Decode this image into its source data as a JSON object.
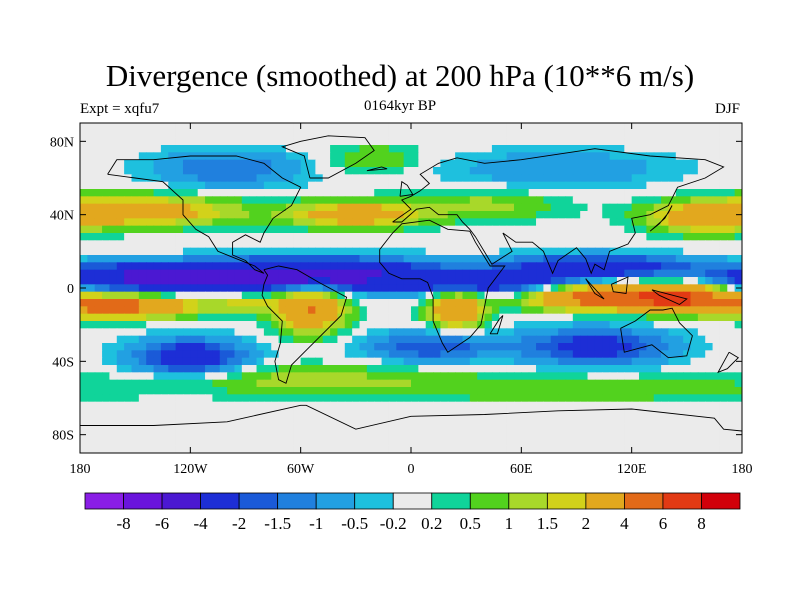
{
  "title": "Divergence (smoothed) at 200 hPa (10**6 m/s)",
  "left_label": "Expt = xqfu7",
  "center_label": "0164kyr BP",
  "right_label": "DJF",
  "map": {
    "lon_range": [
      -180,
      180
    ],
    "lat_range": [
      -90,
      90
    ],
    "lat_ticks": [
      {
        "value": 80,
        "label": "80N"
      },
      {
        "value": 40,
        "label": "40N"
      },
      {
        "value": 0,
        "label": "0"
      },
      {
        "value": -40,
        "label": "40S"
      },
      {
        "value": -80,
        "label": "80S"
      }
    ],
    "lon_ticks": [
      {
        "value": -180,
        "label": "180"
      },
      {
        "value": -120,
        "label": "120W"
      },
      {
        "value": -60,
        "label": "60W"
      },
      {
        "value": 0,
        "label": "0"
      },
      {
        "value": 60,
        "label": "60E"
      },
      {
        "value": 120,
        "label": "120E"
      },
      {
        "value": 180,
        "label": "180"
      }
    ]
  },
  "colorbar": {
    "colors": [
      "#8a1ee6",
      "#6a14dc",
      "#4b18d2",
      "#1d2ed6",
      "#1a5ad8",
      "#2080de",
      "#22a0e2",
      "#1ec0de",
      "#ebebeb",
      "#10d49a",
      "#52d21e",
      "#a8d82a",
      "#d2d21a",
      "#e2a81e",
      "#e26a18",
      "#e23a14",
      "#d2000a"
    ],
    "labels": [
      "-8",
      "-6",
      "-4",
      "-2",
      "-1.5",
      "-1",
      "-0.5",
      "-0.2",
      "0.2",
      "0.5",
      "1",
      "1.5",
      "2",
      "4",
      "6",
      "8"
    ]
  },
  "chart_data": {
    "type": "heatmap",
    "title": "Divergence (smoothed) at 200 hPa (10**6 m/s)",
    "levels": [
      -8,
      -6,
      -4,
      -2,
      -1.5,
      -1,
      -0.5,
      -0.2,
      0.2,
      0.5,
      1,
      1.5,
      2,
      4,
      6,
      8
    ],
    "blobs": [
      {
        "lon": -130,
        "lat": 6,
        "rlon": 60,
        "rlat": 7,
        "v": -5
      },
      {
        "lon": -50,
        "lat": 8,
        "rlon": 60,
        "rlat": 8,
        "v": -4.5
      },
      {
        "lon": 40,
        "lat": 3,
        "rlon": 60,
        "rlat": 6,
        "v": -3
      },
      {
        "lon": 100,
        "lat": 12,
        "rlon": 50,
        "rlat": 6,
        "v": -3
      },
      {
        "lon": -160,
        "lat": -10,
        "rlon": 40,
        "rlat": 6,
        "v": 5
      },
      {
        "lon": 100,
        "lat": -5,
        "rlon": 35,
        "rlat": 7,
        "v": 5
      },
      {
        "lon": 145,
        "lat": -5,
        "rlon": 25,
        "rlat": 7,
        "v": 6
      },
      {
        "lon": -55,
        "lat": -12,
        "rlon": 18,
        "rlat": 12,
        "v": 4
      },
      {
        "lon": 25,
        "lat": -12,
        "rlon": 15,
        "rlat": 10,
        "v": 3.5
      },
      {
        "lon": -90,
        "lat": -8,
        "rlon": 20,
        "rlat": 5,
        "v": 1.5
      },
      {
        "lon": -150,
        "lat": 42,
        "rlon": 55,
        "rlat": 8,
        "v": 3
      },
      {
        "lon": -30,
        "lat": 40,
        "rlon": 35,
        "rlat": 7,
        "v": 3
      },
      {
        "lon": 40,
        "lat": 45,
        "rlon": 40,
        "rlat": 8,
        "v": 1.2
      },
      {
        "lon": 160,
        "lat": 38,
        "rlon": 30,
        "rlat": 8,
        "v": 2.5
      },
      {
        "lon": -120,
        "lat": -38,
        "rlon": 30,
        "rlat": 10,
        "v": -3
      },
      {
        "lon": 10,
        "lat": -32,
        "rlon": 35,
        "rlat": 8,
        "v": -2
      },
      {
        "lon": 100,
        "lat": -32,
        "rlon": 40,
        "rlat": 10,
        "v": -2.5
      },
      {
        "lon": -60,
        "lat": -50,
        "rlon": 80,
        "rlat": 8,
        "v": 1.2
      },
      {
        "lon": 90,
        "lat": -55,
        "rlon": 100,
        "rlat": 7,
        "v": 1
      },
      {
        "lon": -100,
        "lat": 65,
        "rlon": 40,
        "rlat": 10,
        "v": -1.5
      },
      {
        "lon": 80,
        "lat": 65,
        "rlon": 60,
        "rlat": 10,
        "v": -1
      },
      {
        "lon": -20,
        "lat": 70,
        "rlon": 25,
        "rlat": 8,
        "v": 1
      }
    ]
  }
}
